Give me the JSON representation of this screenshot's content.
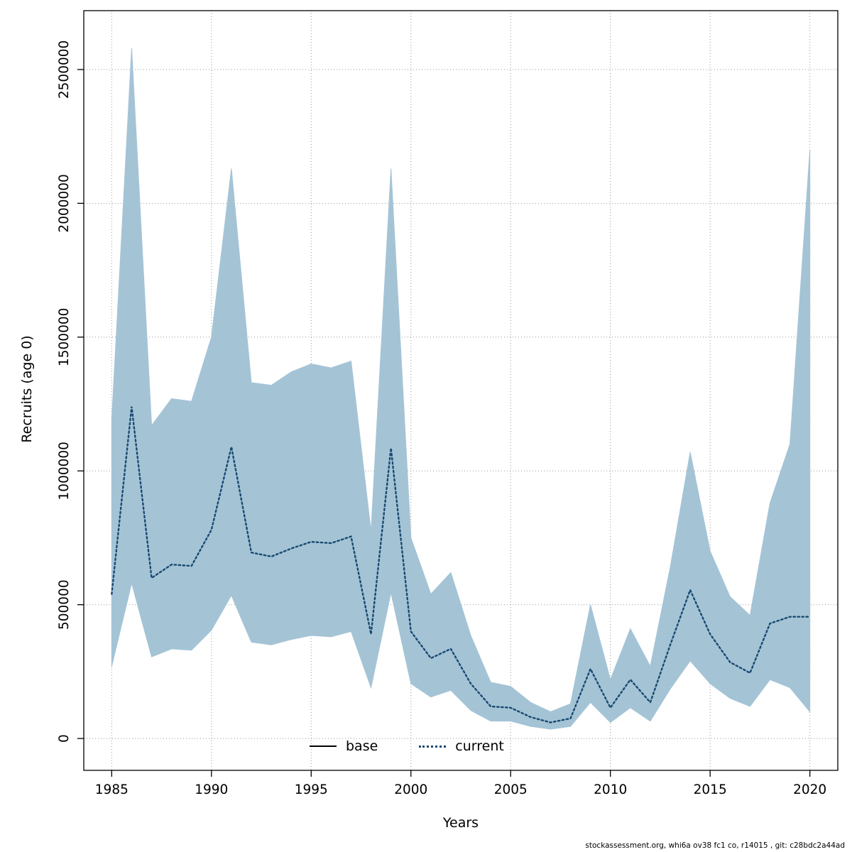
{
  "footer": {
    "text": "stockassessment.org, whi6a ov38 fc1 co, r14015 , git: c28bdc2a44ad"
  },
  "chart_data": {
    "type": "area",
    "title": "",
    "xlabel": "Years",
    "ylabel": "Recruits (age 0)",
    "grid": "dotted",
    "grid_color": "#999999",
    "band_color": "#a4c4d6",
    "line_color": "#1a4971",
    "x_ticks": [
      1985,
      1990,
      1995,
      2000,
      2005,
      2010,
      2015,
      2020
    ],
    "y_ticks": [
      0,
      500000,
      1000000,
      1500000,
      2000000,
      2500000
    ],
    "y_tick_labels": [
      "0",
      "500000",
      "1000000",
      "1500000",
      "2000000",
      "2500000"
    ],
    "xlim": [
      1983.6,
      2021.4
    ],
    "ylim": [
      -119000,
      2720000
    ],
    "x": [
      1985,
      1986,
      1987,
      1988,
      1989,
      1990,
      1991,
      1992,
      1993,
      1994,
      1995,
      1996,
      1997,
      1998,
      1999,
      2000,
      2001,
      2002,
      2003,
      2004,
      2005,
      2006,
      2007,
      2008,
      2009,
      2010,
      2011,
      2012,
      2013,
      2014,
      2015,
      2016,
      2017,
      2018,
      2019,
      2020
    ],
    "series": [
      {
        "name": "current",
        "style": "dotted",
        "color": "#1a4971",
        "values": [
          540000,
          1240000,
          600000,
          650000,
          645000,
          780000,
          1090000,
          695000,
          680000,
          710000,
          735000,
          730000,
          755000,
          390000,
          1085000,
          400000,
          300000,
          335000,
          205000,
          120000,
          115000,
          80000,
          60000,
          75000,
          260000,
          115000,
          220000,
          135000,
          350000,
          555000,
          390000,
          285000,
          245000,
          430000,
          455000,
          455000
        ]
      }
    ],
    "band": {
      "name": "confidence-interval",
      "upper": [
        1190000,
        2580000,
        1170000,
        1270000,
        1260000,
        1500000,
        2130000,
        1330000,
        1320000,
        1370000,
        1400000,
        1385000,
        1410000,
        775000,
        2130000,
        750000,
        540000,
        620000,
        385000,
        210000,
        195000,
        135000,
        100000,
        130000,
        500000,
        220000,
        410000,
        270000,
        640000,
        1070000,
        700000,
        530000,
        460000,
        880000,
        1100000,
        2200000
      ],
      "lower": [
        270000,
        580000,
        305000,
        335000,
        330000,
        405000,
        535000,
        360000,
        350000,
        370000,
        385000,
        380000,
        400000,
        190000,
        545000,
        205000,
        155000,
        180000,
        105000,
        65000,
        65000,
        45000,
        35000,
        45000,
        135000,
        60000,
        115000,
        65000,
        185000,
        290000,
        205000,
        150000,
        120000,
        220000,
        190000,
        100000
      ]
    },
    "legend": {
      "position": "bottom-center-inside",
      "entries": [
        {
          "label": "base",
          "style": "solid",
          "color": "#000000"
        },
        {
          "label": "current",
          "style": "dotted",
          "color": "#1a4971"
        }
      ]
    }
  }
}
